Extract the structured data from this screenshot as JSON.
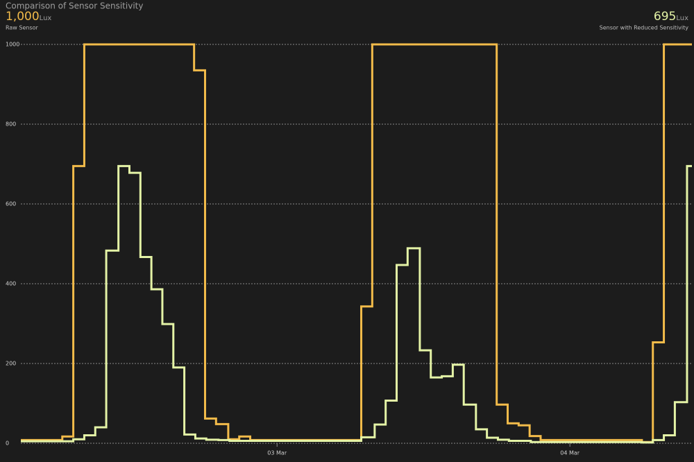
{
  "chart_data": {
    "type": "step-line",
    "title": "Comparison of Sensor Sensitivity",
    "unit": "Lux",
    "xlim": [
      3,
      58
    ],
    "xticks": [
      {
        "value": 24,
        "label": "03 Mar"
      },
      {
        "value": 48,
        "label": "04 Mar"
      }
    ],
    "ylim": [
      0,
      1000
    ],
    "yticks": [
      0,
      200,
      400,
      600,
      800,
      1000
    ],
    "grid": true,
    "series": [
      {
        "name": "Raw Sensor",
        "color": "#f2bb4a",
        "current": 1000,
        "current_label": "1,000",
        "x": [
          3.0,
          6.4,
          7.3,
          8.2,
          17.2,
          18.1,
          19.0,
          20.0,
          20.9,
          21.8,
          30.9,
          31.8,
          42.0,
          42.9,
          43.8,
          44.7,
          45.6,
          53.9,
          54.8,
          55.7
        ],
        "values": [
          8,
          17,
          695,
          1000,
          935,
          62,
          48,
          10,
          17,
          8,
          343,
          1000,
          97,
          50,
          45,
          18,
          8,
          3,
          253,
          1000
        ]
      },
      {
        "name": "Sensor with Reduced Sensitivity",
        "color": "#e4f3a6",
        "current": 695,
        "x": [
          3.0,
          7.3,
          8.2,
          9.1,
          10.0,
          11.0,
          11.9,
          12.8,
          13.7,
          14.6,
          15.5,
          16.4,
          17.3,
          18.2,
          19.2,
          20.1,
          30.9,
          32.0,
          32.9,
          33.8,
          34.7,
          35.7,
          36.6,
          37.5,
          38.4,
          39.3,
          40.3,
          41.2,
          42.1,
          43.0,
          44.8,
          53.9,
          54.8,
          55.7,
          56.6,
          57.6
        ],
        "values": [
          5,
          10,
          20,
          40,
          483,
          695,
          678,
          467,
          386,
          299,
          190,
          22,
          12,
          9,
          8,
          6,
          15,
          47,
          107,
          447,
          489,
          233,
          165,
          168,
          197,
          97,
          35,
          14,
          9,
          6,
          3,
          2,
          8,
          20,
          103,
          695
        ]
      }
    ]
  }
}
